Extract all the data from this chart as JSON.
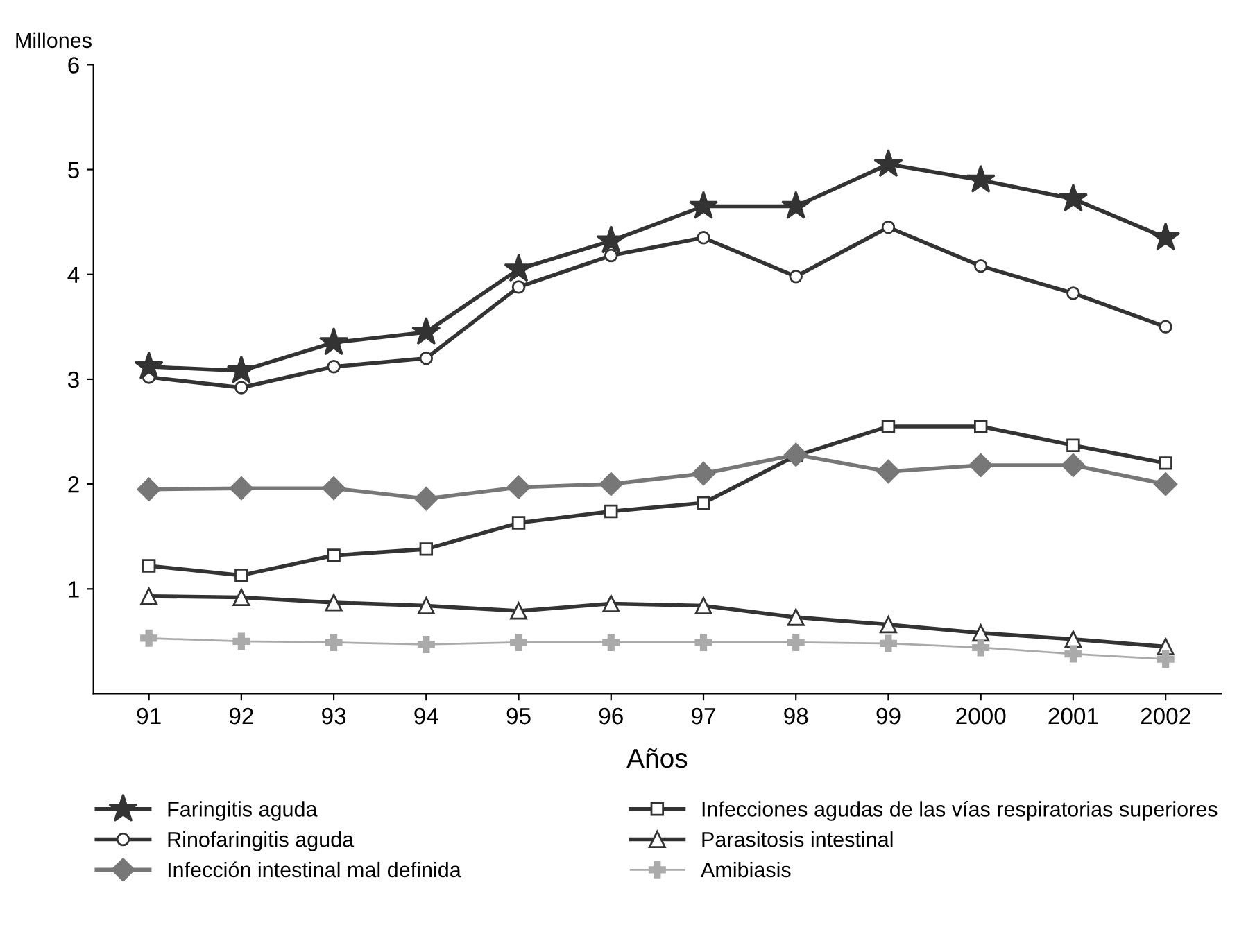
{
  "chart_data": {
    "type": "line",
    "xlabel": "Años",
    "ylabel": "Millones",
    "categories": [
      "91",
      "92",
      "93",
      "94",
      "95",
      "96",
      "97",
      "98",
      "99",
      "2000",
      "2001",
      "2002"
    ],
    "ylim": [
      0,
      6
    ],
    "yticks": [
      1,
      2,
      3,
      4,
      5,
      6
    ],
    "grid": false,
    "legend": "bottom",
    "line_style": "solid",
    "series": [
      {
        "name": "Faringitis aguda",
        "color": "#333333",
        "marker": "star",
        "values": [
          3.12,
          3.08,
          3.35,
          3.45,
          4.05,
          4.32,
          4.65,
          4.65,
          5.05,
          4.9,
          4.72,
          4.35
        ]
      },
      {
        "name": "Rinofaringitis aguda",
        "color": "#333333",
        "marker": "circle",
        "values": [
          3.02,
          2.92,
          3.12,
          3.2,
          3.88,
          4.18,
          4.35,
          3.98,
          4.45,
          4.08,
          3.82,
          3.5
        ]
      },
      {
        "name": "Infección intestinal mal definida",
        "color": "#777777",
        "marker": "diamond",
        "values": [
          1.95,
          1.96,
          1.96,
          1.86,
          1.97,
          2.0,
          2.1,
          2.28,
          2.12,
          2.18,
          2.18,
          2.0
        ]
      },
      {
        "name": "Infecciones agudas de las vías respiratorias superiores",
        "color": "#333333",
        "marker": "square",
        "values": [
          1.22,
          1.13,
          1.32,
          1.38,
          1.63,
          1.74,
          1.82,
          2.27,
          2.55,
          2.55,
          2.37,
          2.2
        ]
      },
      {
        "name": "Parasitosis intestinal",
        "color": "#333333",
        "marker": "triangle",
        "values": [
          0.93,
          0.92,
          0.87,
          0.84,
          0.79,
          0.86,
          0.84,
          0.73,
          0.66,
          0.58,
          0.52,
          0.45
        ]
      },
      {
        "name": "Amibiasis",
        "color": "#aaaaaa",
        "marker": "cross",
        "values": [
          0.53,
          0.5,
          0.49,
          0.47,
          0.49,
          0.49,
          0.49,
          0.49,
          0.48,
          0.44,
          0.38,
          0.33
        ]
      }
    ]
  }
}
